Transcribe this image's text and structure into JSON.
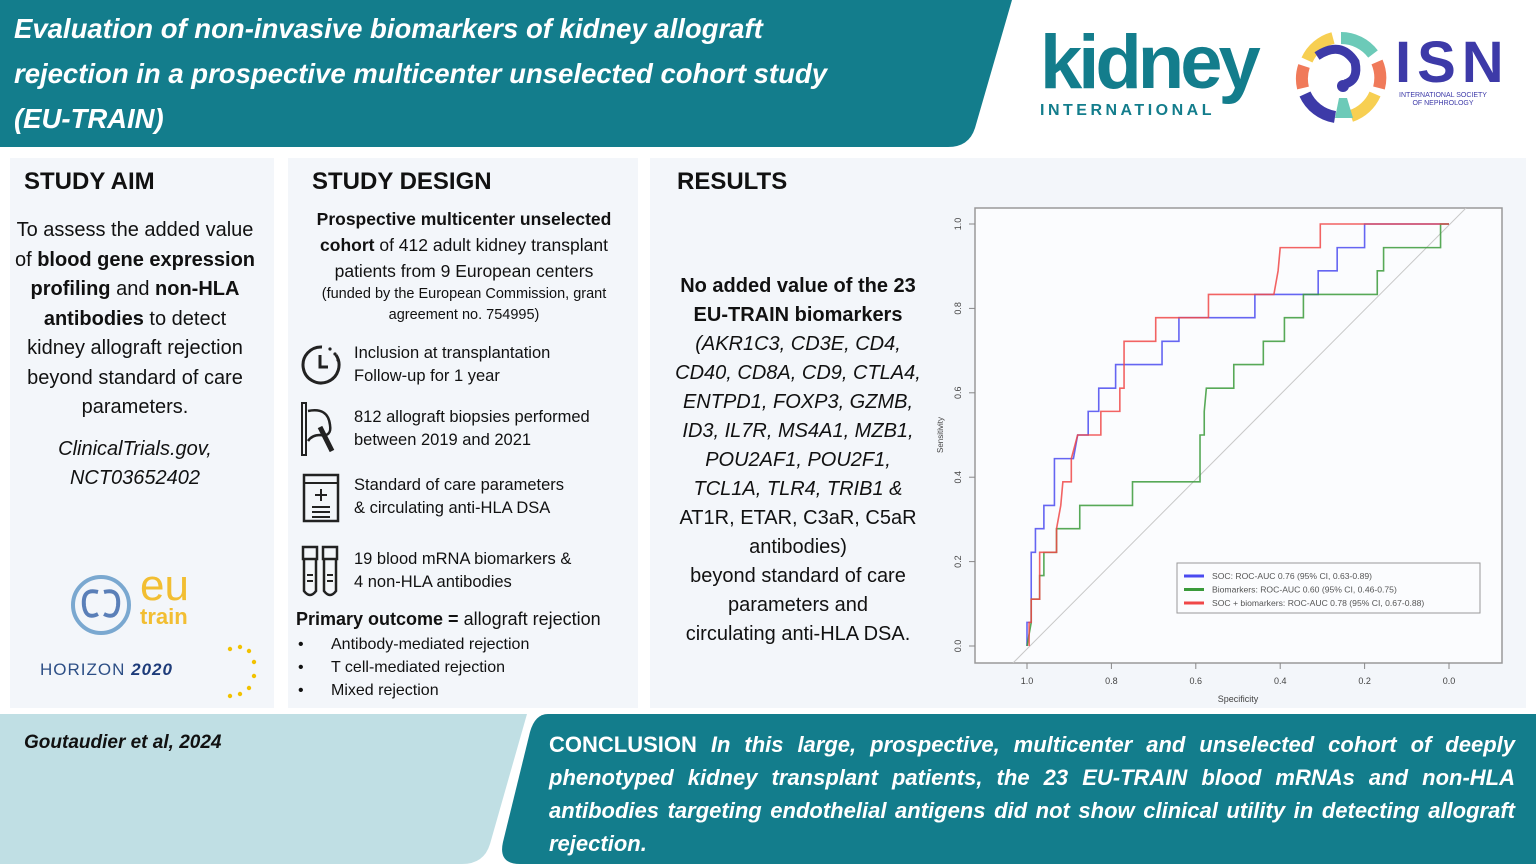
{
  "header": {
    "title_lines": [
      "Evaluation of non-invasive biomarkers of kidney allograft",
      "rejection in a prospective multicenter unselected cohort study",
      "(EU-TRAIN)"
    ]
  },
  "logos": {
    "kidney_international": {
      "word": "kidney",
      "sub": "INTERNATIONAL"
    },
    "isn": {
      "word": "ISN",
      "sub_lines": [
        "INTERNATIONAL SOCIETY",
        "OF NEPHROLOGY"
      ]
    },
    "eu_train": {
      "eu": "eu",
      "train": "train"
    },
    "horizon": {
      "word": "HORIZON",
      "year": "2020"
    }
  },
  "colors": {
    "teal": "#137d8c",
    "light_teal": "#c0dfe4",
    "panel": "#f3f6fa",
    "soc": "#4a4af0",
    "biomarkers": "#3a9a3a",
    "combined": "#f04848"
  },
  "study_aim": {
    "heading": "STUDY AIM",
    "text": [
      {
        "t": "To assess the added value of ",
        "b": false
      },
      {
        "t": "blood gene expression profiling",
        "b": true
      },
      {
        "t": " and ",
        "b": false
      },
      {
        "t": "non-HLA antibodies",
        "b": true
      },
      {
        "t": " to detect kidney allograft rejection beyond standard of care parameters.",
        "b": false
      }
    ],
    "trial_lines": [
      "ClinicalTrials.gov,",
      "NCT03652402"
    ]
  },
  "study_design": {
    "heading": "STUDY DESIGN",
    "intro_bold": "Prospective multicenter unselected cohort",
    "intro_rest": " of 412 adult kidney transplant patients from 9 European centers",
    "funding": "(funded by the European Commission, grant agreement no. 754995)",
    "items": [
      {
        "icon": "clock-icon",
        "lines": [
          "Inclusion at transplantation",
          "Follow-up for 1 year"
        ]
      },
      {
        "icon": "kidney-biopsy-icon",
        "lines": [
          "812 allograft biopsies performed",
          "between 2019 and 2021"
        ]
      },
      {
        "icon": "clipboard-icon",
        "lines": [
          "Standard of care parameters",
          "& circulating anti-HLA DSA"
        ]
      },
      {
        "icon": "blood-tubes-icon",
        "lines": [
          "19 blood mRNA biomarkers &",
          "4 non-HLA antibodies"
        ]
      }
    ],
    "outcome_bold": "Primary outcome =",
    "outcome_rest": " allograft rejection",
    "outcomes": [
      "Antibody-mediated rejection",
      "T cell-mediated rejection",
      "Mixed rejection"
    ]
  },
  "results": {
    "heading": "RESULTS",
    "bold_lines": [
      "No added value of the 23",
      "EU-TRAIN biomarkers"
    ],
    "gene_lines": [
      "(AKR1C3, CD3E, CD4,",
      "CD40, CD8A, CD9, CTLA4,",
      "ENTPD1, FOXP3, GZMB,",
      "ID3, IL7R, MS4A1, MZB1,",
      "POU2AF1, POU2F1,",
      "TCL1A, TLR4, TRIB1 &"
    ],
    "antibody_lines": [
      "AT1R, ETAR, C3aR, C5aR",
      "antibodies)"
    ],
    "tail_lines": [
      "beyond standard of care",
      "parameters and",
      "circulating anti-HLA DSA."
    ]
  },
  "chart_data": {
    "type": "line",
    "title": "",
    "xlabel": "Specificity",
    "ylabel": "Sensitivity",
    "xlim": [
      1.0,
      0.0
    ],
    "ylim": [
      0.0,
      1.0
    ],
    "xticks": [
      "1.0",
      "0.8",
      "0.6",
      "0.4",
      "0.2",
      "0.0"
    ],
    "yticks": [
      "0.0",
      "0.2",
      "0.4",
      "0.6",
      "0.8",
      "1.0"
    ],
    "grid": false,
    "legend_position": "bottom-right",
    "reference_line": "diagonal",
    "series": [
      {
        "name": "SOC: ROC-AUC 0.76 (95% CI, 0.63-0.89)",
        "color": "#4a4af0",
        "x": [
          1,
          1,
          0.99,
          0.99,
          0.98,
          0.98,
          0.96,
          0.96,
          0.935,
          0.935,
          0.89,
          0.88,
          0.855,
          0.855,
          0.83,
          0.83,
          0.79,
          0.79,
          0.68,
          0.68,
          0.64,
          0.64,
          0.46,
          0.46,
          0.31,
          0.31,
          0.265,
          0.265,
          0.2,
          0.2,
          0
        ],
        "y": [
          0,
          0.056,
          0.056,
          0.222,
          0.222,
          0.278,
          0.278,
          0.333,
          0.333,
          0.444,
          0.444,
          0.5,
          0.5,
          0.556,
          0.556,
          0.611,
          0.611,
          0.667,
          0.667,
          0.722,
          0.722,
          0.778,
          0.778,
          0.833,
          0.833,
          0.889,
          0.889,
          0.944,
          0.944,
          1,
          1
        ]
      },
      {
        "name": "Biomarkers: ROC-AUC 0.60 (95% CI, 0.46-0.75)",
        "color": "#3a9a3a",
        "x": [
          1,
          0.99,
          0.99,
          0.97,
          0.97,
          0.96,
          0.96,
          0.93,
          0.93,
          0.875,
          0.875,
          0.75,
          0.75,
          0.59,
          0.59,
          0.58,
          0.58,
          0.575,
          0.51,
          0.51,
          0.44,
          0.44,
          0.39,
          0.39,
          0.345,
          0.345,
          0.17,
          0.17,
          0.155,
          0.155,
          0.02,
          0.02,
          0
        ],
        "y": [
          0,
          0.056,
          0.111,
          0.111,
          0.167,
          0.167,
          0.222,
          0.222,
          0.278,
          0.278,
          0.333,
          0.333,
          0.389,
          0.389,
          0.5,
          0.5,
          0.556,
          0.611,
          0.611,
          0.667,
          0.667,
          0.722,
          0.722,
          0.778,
          0.778,
          0.833,
          0.833,
          0.889,
          0.889,
          0.944,
          0.944,
          1,
          1
        ]
      },
      {
        "name": "SOC + biomarkers: ROC-AUC 0.78 (95% CI, 0.67-0.88)",
        "color": "#f04848",
        "x": [
          0.995,
          0.995,
          0.99,
          0.99,
          0.97,
          0.97,
          0.93,
          0.93,
          0.92,
          0.915,
          0.895,
          0.895,
          0.88,
          0.825,
          0.825,
          0.78,
          0.78,
          0.77,
          0.77,
          0.695,
          0.695,
          0.57,
          0.57,
          0.415,
          0.405,
          0.4,
          0.305,
          0.305,
          0
        ],
        "y": [
          0,
          0.056,
          0.056,
          0.111,
          0.111,
          0.222,
          0.222,
          0.278,
          0.333,
          0.389,
          0.389,
          0.444,
          0.5,
          0.5,
          0.556,
          0.556,
          0.611,
          0.611,
          0.722,
          0.722,
          0.778,
          0.778,
          0.833,
          0.833,
          0.889,
          0.944,
          0.944,
          1,
          1
        ]
      }
    ]
  },
  "footer": {
    "citation": "Goutaudier et al, 2024",
    "conclusion_label": "CONCLUSION",
    "conclusion_text": "In this large, prospective, multicenter and unselected cohort of deeply phenotyped kidney transplant patients, the 23 EU-TRAIN blood mRNAs and non-HLA antibodies targeting endothelial antigens did not show clinical utility in detecting allograft rejection."
  }
}
